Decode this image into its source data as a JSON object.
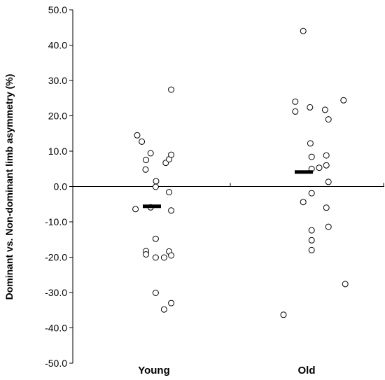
{
  "chart_data": {
    "type": "scatter",
    "title": "",
    "xlabel": "",
    "ylabel": "Dominant vs. Non-dominant limb asymmetry (%)",
    "ylim": [
      -50,
      50
    ],
    "yticks": [
      50,
      40,
      30,
      20,
      10,
      0,
      -10,
      -20,
      -30,
      -40,
      -50
    ],
    "ytick_labels": [
      "50.0",
      "40.0",
      "30.0",
      "20.0",
      "10.0",
      "0.0",
      "-10.0",
      "-20.0",
      "-30.0",
      "-40.0",
      "-50.0"
    ],
    "categories": [
      "Young",
      "Old"
    ],
    "grid": false,
    "legend": "none",
    "marker": "open-circle",
    "mean_marker": "horizontal-bar",
    "series": [
      {
        "category": "Young",
        "mean": -5.6,
        "points": [
          {
            "jitter": -0.4,
            "y": 14.5
          },
          {
            "jitter": -0.29,
            "y": 12.7
          },
          {
            "jitter": -0.19,
            "y": 7.5
          },
          {
            "jitter": -0.08,
            "y": 9.4
          },
          {
            "jitter": -0.2,
            "y": 4.8
          },
          {
            "jitter": 0.05,
            "y": 1.5
          },
          {
            "jitter": 0.04,
            "y": -0.1
          },
          {
            "jitter": 0.28,
            "y": 6.7
          },
          {
            "jitter": 0.36,
            "y": 7.7
          },
          {
            "jitter": 0.41,
            "y": 9.0
          },
          {
            "jitter": 0.41,
            "y": 27.4
          },
          {
            "jitter": -0.44,
            "y": -6.4
          },
          {
            "jitter": -0.08,
            "y": -5.9
          },
          {
            "jitter": 0.36,
            "y": -1.6
          },
          {
            "jitter": 0.41,
            "y": -6.8
          },
          {
            "jitter": -0.19,
            "y": -18.3
          },
          {
            "jitter": -0.19,
            "y": -19.2
          },
          {
            "jitter": 0.04,
            "y": -14.8
          },
          {
            "jitter": 0.04,
            "y": -20.1
          },
          {
            "jitter": 0.24,
            "y": -20.1
          },
          {
            "jitter": 0.36,
            "y": -18.4
          },
          {
            "jitter": 0.41,
            "y": -19.5
          },
          {
            "jitter": 0.04,
            "y": -30.1
          },
          {
            "jitter": 0.24,
            "y": -34.8
          },
          {
            "jitter": 0.41,
            "y": -33.0
          }
        ]
      },
      {
        "category": "Old",
        "mean": 4.1,
        "points": [
          {
            "jitter": -0.08,
            "y": 44.0
          },
          {
            "jitter": -0.27,
            "y": 24.0
          },
          {
            "jitter": -0.27,
            "y": 21.2
          },
          {
            "jitter": 0.08,
            "y": 22.4
          },
          {
            "jitter": 0.44,
            "y": 21.7
          },
          {
            "jitter": 0.52,
            "y": 19.0
          },
          {
            "jitter": 0.88,
            "y": 24.4
          },
          {
            "jitter": 0.09,
            "y": 12.2
          },
          {
            "jitter": 0.12,
            "y": 8.4
          },
          {
            "jitter": 0.47,
            "y": 8.8
          },
          {
            "jitter": 0.12,
            "y": 5.0
          },
          {
            "jitter": 0.3,
            "y": 5.3
          },
          {
            "jitter": 0.47,
            "y": 6.0
          },
          {
            "jitter": 0.52,
            "y": 1.3
          },
          {
            "jitter": 0.12,
            "y": -1.9
          },
          {
            "jitter": -0.08,
            "y": -4.4
          },
          {
            "jitter": 0.47,
            "y": -6.0
          },
          {
            "jitter": 0.52,
            "y": -11.4
          },
          {
            "jitter": 0.12,
            "y": -12.4
          },
          {
            "jitter": 0.12,
            "y": -15.2
          },
          {
            "jitter": 0.12,
            "y": -18.0
          },
          {
            "jitter": 0.92,
            "y": -27.6
          },
          {
            "jitter": -0.55,
            "y": -36.3
          }
        ]
      }
    ]
  }
}
